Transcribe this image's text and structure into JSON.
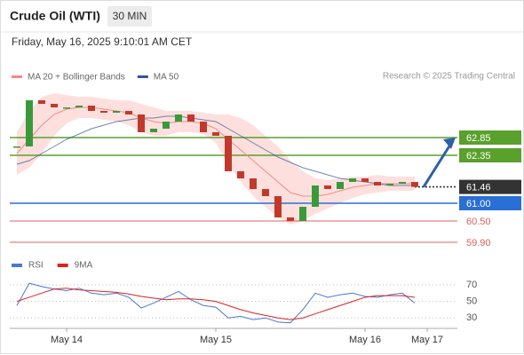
{
  "header": {
    "title": "Crude Oil (WTI)",
    "timeframe": "30 MIN",
    "datetime": "Friday, May 16, 2025 9:10:01 AM CET",
    "credit": "Research © 2025 Trading Central"
  },
  "chart_data": [
    {
      "type": "candlestick",
      "legend": [
        {
          "name": "MA 20 + Bollinger Bands",
          "color": "#f28b82"
        },
        {
          "name": "MA 50",
          "color": "#2f5597"
        }
      ],
      "ylim": [
        59.6,
        64.25
      ],
      "xticks": [
        {
          "value": 4,
          "label": "May 14"
        },
        {
          "value": 16,
          "label": "May 15"
        },
        {
          "value": 28,
          "label": "May 16"
        },
        {
          "value": 33,
          "label": "May 17"
        }
      ],
      "close": [
        62.6,
        63.9,
        63.8,
        63.7,
        63.7,
        63.75,
        63.6,
        63.55,
        63.6,
        63.5,
        63.0,
        63.1,
        63.3,
        63.5,
        63.3,
        63.0,
        62.9,
        61.9,
        61.7,
        61.4,
        61.2,
        60.6,
        60.5,
        60.9,
        61.5,
        61.4,
        61.6,
        61.7,
        61.6,
        61.5,
        61.55,
        61.6,
        61.46
      ],
      "up_color": "#3a9a3a",
      "down_color": "#c0392b",
      "ma20": [
        62.4,
        62.8,
        63.2,
        63.5,
        63.65,
        63.7,
        63.7,
        63.65,
        63.6,
        63.55,
        63.4,
        63.3,
        63.25,
        63.3,
        63.3,
        63.25,
        63.1,
        62.8,
        62.5,
        62.2,
        61.9,
        61.6,
        61.3,
        61.2,
        61.2,
        61.25,
        61.35,
        61.45,
        61.5,
        61.55,
        61.55,
        61.55,
        61.55
      ],
      "bb_upper": [
        63.0,
        63.6,
        64.0,
        64.1,
        64.05,
        64.0,
        64.0,
        63.95,
        63.9,
        63.9,
        63.8,
        63.7,
        63.6,
        63.6,
        63.6,
        63.55,
        63.5,
        63.5,
        63.4,
        63.2,
        62.9,
        62.6,
        62.2,
        61.9,
        61.7,
        61.65,
        61.7,
        61.75,
        61.75,
        61.8,
        61.75,
        61.75,
        61.75
      ],
      "bb_lower": [
        61.8,
        62.0,
        62.4,
        62.9,
        63.25,
        63.4,
        63.4,
        63.35,
        63.3,
        63.2,
        63.0,
        62.9,
        62.9,
        63.0,
        63.0,
        62.95,
        62.7,
        62.1,
        61.6,
        61.2,
        60.9,
        60.6,
        60.4,
        60.5,
        60.7,
        60.85,
        61.0,
        61.15,
        61.25,
        61.3,
        61.35,
        61.35,
        61.35
      ],
      "band_color": "#fde0de",
      "ma50": [
        62.1,
        62.2,
        62.4,
        62.6,
        62.8,
        62.95,
        63.1,
        63.2,
        63.3,
        63.35,
        63.4,
        63.4,
        63.45,
        63.45,
        63.4,
        63.35,
        63.3,
        63.1,
        62.9,
        62.7,
        62.5,
        62.3,
        62.15,
        62.0,
        61.9,
        61.8,
        61.7,
        61.65,
        61.6,
        61.55,
        61.5,
        61.5,
        61.5
      ],
      "levels": [
        {
          "value": 62.85,
          "color": "#5aa02c",
          "box": true
        },
        {
          "value": 62.35,
          "color": "#5aa02c",
          "box": true
        },
        {
          "value": 61.46,
          "color": "#333333",
          "box": true,
          "dotted": true
        },
        {
          "value": 61,
          "label": "61.00",
          "color": "#2a6fd6",
          "box": true
        },
        {
          "value": 60.5,
          "label": "60.50",
          "color": "#e06060",
          "box": false
        },
        {
          "value": 59.9,
          "label": "59.90",
          "color": "#e06060",
          "box": false
        }
      ],
      "arrow_color": "#2f5fa8"
    },
    {
      "type": "line",
      "ylim": [
        20,
        80
      ],
      "yticks": [
        30,
        50,
        70
      ],
      "series": [
        {
          "name": "RSI",
          "color": "#4a78d0",
          "values": [
            45,
            72,
            68,
            65,
            63,
            66,
            60,
            58,
            60,
            55,
            42,
            48,
            55,
            62,
            52,
            45,
            43,
            30,
            32,
            28,
            30,
            25,
            24,
            40,
            60,
            55,
            58,
            60,
            56,
            55,
            58,
            60,
            48
          ]
        },
        {
          "name": "9MA",
          "color": "#e02020",
          "values": [
            50,
            55,
            60,
            65,
            66,
            64,
            63,
            62,
            61,
            59,
            56,
            54,
            52,
            53,
            53,
            52,
            50,
            45,
            40,
            36,
            33,
            30,
            28,
            30,
            35,
            40,
            45,
            50,
            55,
            57,
            57,
            57,
            55
          ]
        }
      ]
    }
  ]
}
